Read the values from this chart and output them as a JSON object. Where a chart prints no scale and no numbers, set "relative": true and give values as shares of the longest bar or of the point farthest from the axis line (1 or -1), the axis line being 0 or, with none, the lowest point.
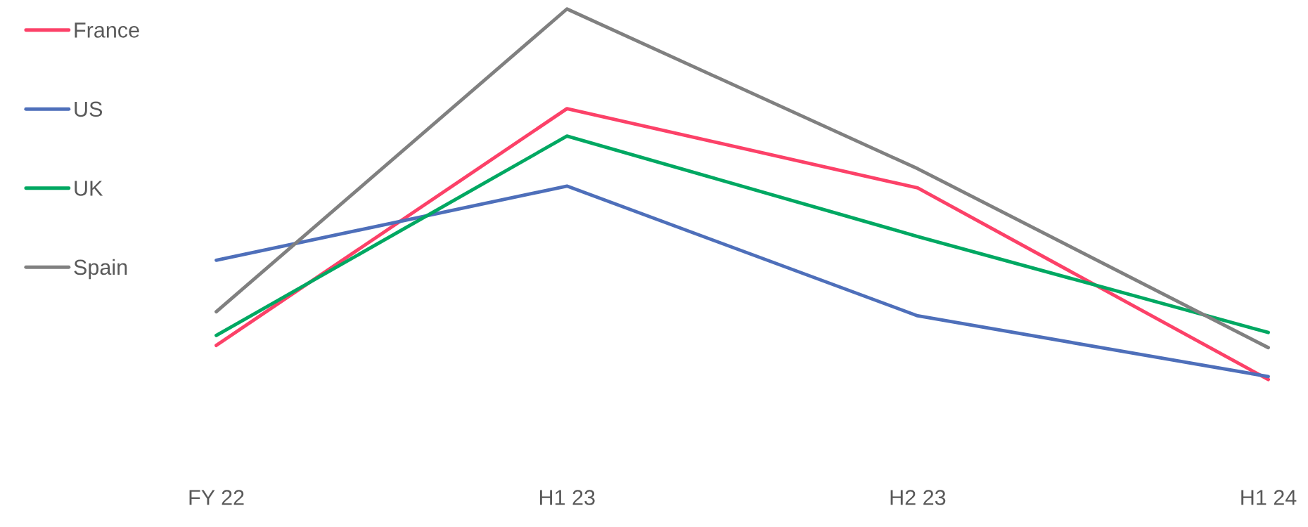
{
  "chart_data": {
    "type": "line",
    "relative": true,
    "categories": [
      "FY 22",
      "H1 23",
      "H2 23",
      "H1 24"
    ],
    "series": [
      {
        "name": "France",
        "color": "#fc4168",
        "values": [
          0.092,
          0.731,
          0.517,
          0
        ]
      },
      {
        "name": "US",
        "color": "#4e6fba",
        "values": [
          0.322,
          0.522,
          0.172,
          0.008
        ]
      },
      {
        "name": "UK",
        "color": "#00a862",
        "values": [
          0.119,
          0.657,
          0.386,
          0.127
        ]
      },
      {
        "name": "Spain",
        "color": "#808080",
        "values": [
          0.183,
          1,
          0.569,
          0.086
        ]
      }
    ],
    "legend": "left",
    "grid": false,
    "marker": "none",
    "line_style": "solid"
  }
}
